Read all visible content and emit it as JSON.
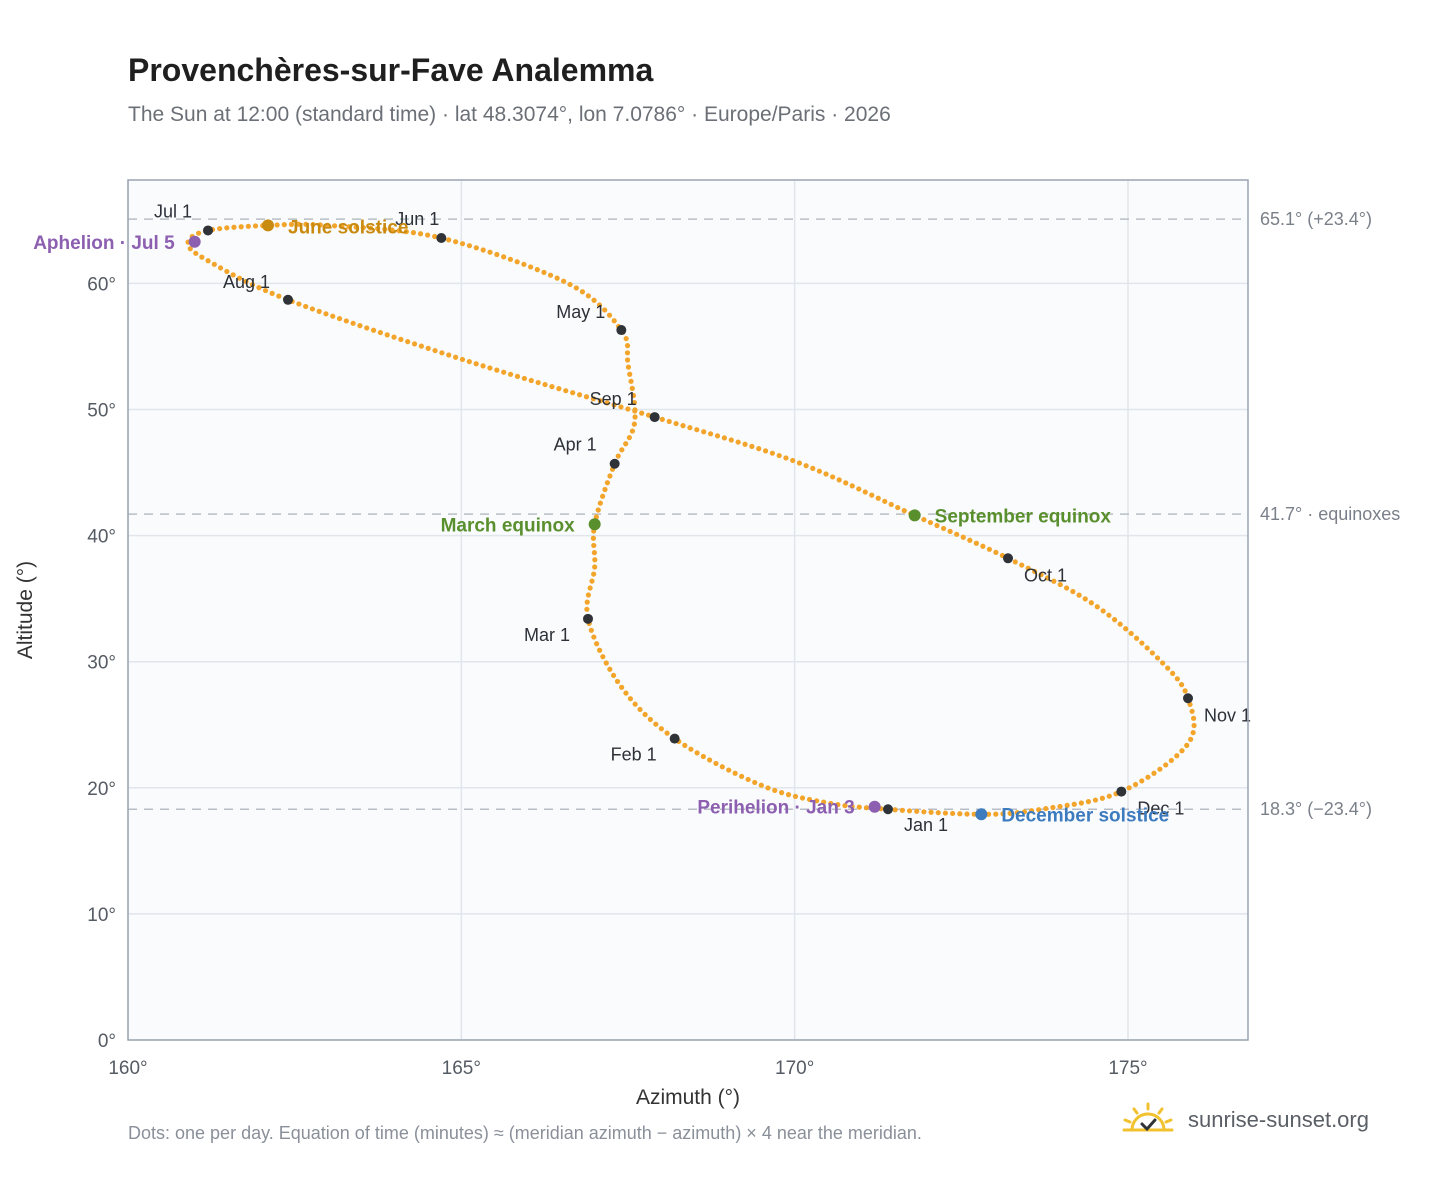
{
  "header": {
    "title": "Provenchères-sur-Fave Analemma",
    "subtitle": "The Sun at 12:00 (standard time) · lat 48.3074°, lon 7.0786° · Europe/Paris · 2026"
  },
  "footer": {
    "note": "Dots: one per day. Equation of time (minutes) ≈ (meridian azimuth − azimuth) × 4 near the meridian.",
    "brand": "sunrise-sunset.org"
  },
  "colors": {
    "curve": "#f2a52a",
    "month_dot": "#2f3338",
    "june_solstice": "#c98a10",
    "december_solstice": "#3d7bbf",
    "equinox": "#5a8f2e",
    "apsis": "#8c5fb0",
    "plot_bg": "#f9fbfd",
    "grid": "#e1e6ec",
    "ref_line": "#b9bec6",
    "frame": "#9aa4b2"
  },
  "chart_data": {
    "type": "scatter",
    "title": "Provenchères-sur-Fave Analemma",
    "xlabel": "Azimuth (°)",
    "ylabel": "Altitude (°)",
    "xlim": [
      160,
      176.8
    ],
    "ylim": [
      0,
      68.2
    ],
    "x_ticks": [
      160,
      165,
      170,
      175
    ],
    "x_tick_labels": [
      "160°",
      "165°",
      "170°",
      "175°"
    ],
    "y_ticks": [
      0,
      10,
      20,
      30,
      40,
      50,
      60
    ],
    "y_tick_labels": [
      "0°",
      "10°",
      "20°",
      "30°",
      "40°",
      "50°",
      "60°"
    ],
    "grid": true,
    "reference_lines": [
      {
        "y": 65.1,
        "label": "65.1° (+23.4°)"
      },
      {
        "y": 41.7,
        "label": "41.7° · equinoxes"
      },
      {
        "y": 18.3,
        "label": "18.3° (−23.4°)"
      }
    ],
    "path_keypoints": [
      {
        "x": 171.4,
        "y": 18.3
      },
      {
        "x": 170.5,
        "y": 18.8
      },
      {
        "x": 169.5,
        "y": 20.2
      },
      {
        "x": 168.2,
        "y": 23.9
      },
      {
        "x": 167.4,
        "y": 28.0
      },
      {
        "x": 166.9,
        "y": 33.4
      },
      {
        "x": 167.0,
        "y": 37.5
      },
      {
        "x": 167.0,
        "y": 40.9
      },
      {
        "x": 167.3,
        "y": 45.7
      },
      {
        "x": 167.6,
        "y": 49.0
      },
      {
        "x": 167.5,
        "y": 53.6
      },
      {
        "x": 167.4,
        "y": 56.3
      },
      {
        "x": 166.6,
        "y": 60.0
      },
      {
        "x": 164.7,
        "y": 63.6
      },
      {
        "x": 163.0,
        "y": 64.6
      },
      {
        "x": 162.1,
        "y": 64.6
      },
      {
        "x": 161.2,
        "y": 64.2
      },
      {
        "x": 160.9,
        "y": 63.2
      },
      {
        "x": 161.2,
        "y": 61.8
      },
      {
        "x": 162.4,
        "y": 58.7
      },
      {
        "x": 165.0,
        "y": 54.0
      },
      {
        "x": 167.9,
        "y": 49.4
      },
      {
        "x": 170.0,
        "y": 45.9
      },
      {
        "x": 171.8,
        "y": 41.6
      },
      {
        "x": 173.2,
        "y": 38.2
      },
      {
        "x": 174.5,
        "y": 34.5
      },
      {
        "x": 175.5,
        "y": 30.0
      },
      {
        "x": 175.9,
        "y": 27.1
      },
      {
        "x": 175.9,
        "y": 23.5
      },
      {
        "x": 174.9,
        "y": 19.7
      },
      {
        "x": 173.7,
        "y": 18.3
      },
      {
        "x": 172.8,
        "y": 17.9
      },
      {
        "x": 171.4,
        "y": 18.3
      }
    ],
    "month_markers": [
      {
        "label": "Jan 1",
        "x": 171.4,
        "y": 18.3
      },
      {
        "label": "Feb 1",
        "x": 168.2,
        "y": 23.9
      },
      {
        "label": "Mar 1",
        "x": 166.9,
        "y": 33.4
      },
      {
        "label": "Apr 1",
        "x": 167.3,
        "y": 45.7
      },
      {
        "label": "May 1",
        "x": 167.4,
        "y": 56.3
      },
      {
        "label": "Jun 1",
        "x": 164.7,
        "y": 63.6
      },
      {
        "label": "Jul 1",
        "x": 161.2,
        "y": 64.2
      },
      {
        "label": "Aug 1",
        "x": 162.4,
        "y": 58.7
      },
      {
        "label": "Sep 1",
        "x": 167.9,
        "y": 49.4
      },
      {
        "label": "Oct 1",
        "x": 173.2,
        "y": 38.2
      },
      {
        "label": "Nov 1",
        "x": 175.9,
        "y": 27.1
      },
      {
        "label": "Dec 1",
        "x": 174.9,
        "y": 19.7
      }
    ],
    "events": [
      {
        "label": "June solstice",
        "x": 162.1,
        "y": 64.6,
        "kind": "june_solstice"
      },
      {
        "label": "December solstice",
        "x": 172.8,
        "y": 17.9,
        "kind": "december_solstice"
      },
      {
        "label": "March equinox",
        "x": 167.0,
        "y": 40.9,
        "kind": "equinox"
      },
      {
        "label": "September equinox",
        "x": 171.8,
        "y": 41.6,
        "kind": "equinox"
      },
      {
        "label": "Aphelion · Jul 5",
        "x": 161.0,
        "y": 63.3,
        "kind": "apsis"
      },
      {
        "label": "Perihelion · Jan 3",
        "x": 171.2,
        "y": 18.5,
        "kind": "apsis"
      }
    ]
  }
}
